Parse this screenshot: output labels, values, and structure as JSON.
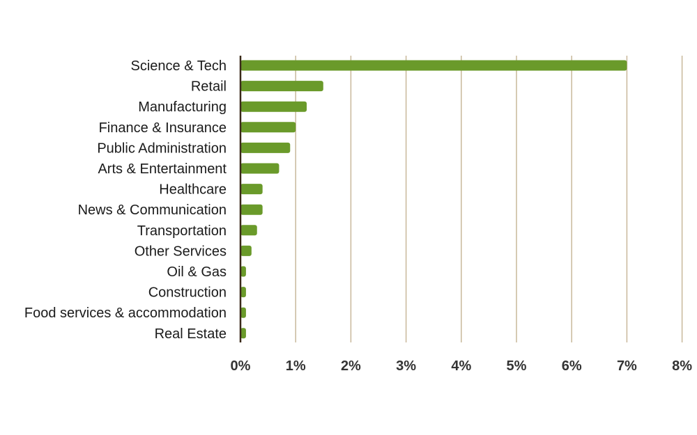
{
  "chart_data": {
    "type": "bar",
    "orientation": "horizontal",
    "categories": [
      "Science & Tech",
      "Retail",
      "Manufacturing",
      "Finance & Insurance",
      "Public Administration",
      "Arts & Entertainment",
      "Healthcare",
      "News & Communication",
      "Transportation",
      "Other Services",
      "Oil & Gas",
      "Construction",
      "Food services & accommodation",
      "Real Estate"
    ],
    "values": [
      7.0,
      1.5,
      1.2,
      1.0,
      0.9,
      0.7,
      0.4,
      0.4,
      0.3,
      0.2,
      0.1,
      0.1,
      0.1,
      0.1
    ],
    "xlim": [
      0,
      8
    ],
    "x_ticks": [
      "0%",
      "1%",
      "2%",
      "3%",
      "4%",
      "5%",
      "6%",
      "7%",
      "8%"
    ],
    "grid": "vertical",
    "bar_color": "#6a9a2a",
    "grid_color": "#c8b89a",
    "axis_color": "#3a2a1a"
  }
}
